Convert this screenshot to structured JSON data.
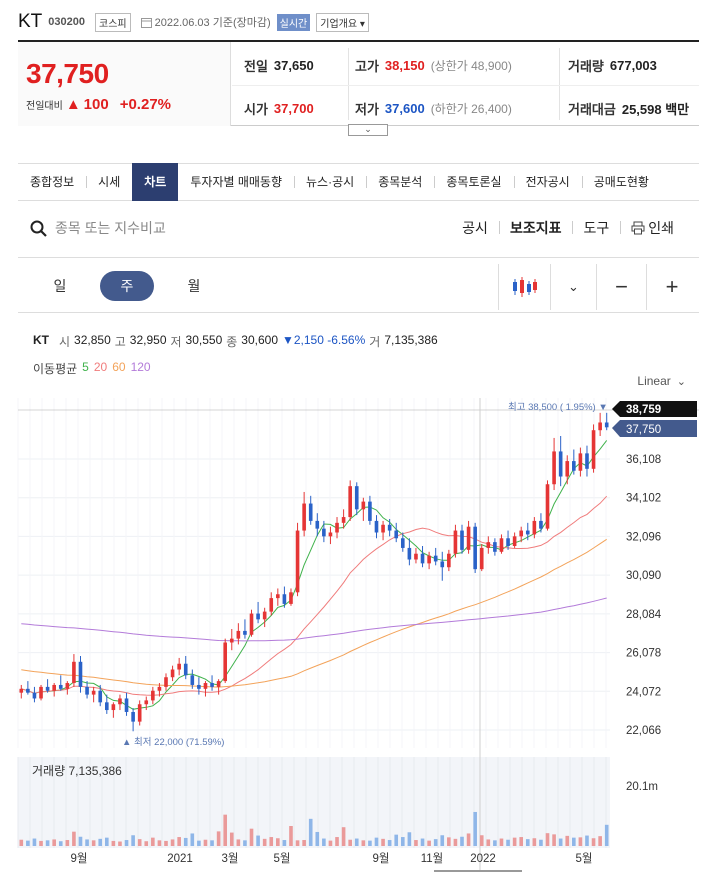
{
  "header": {
    "name": "KT",
    "code": "030200",
    "market": "코스피",
    "date_text": "2022.06.03 기준(장마감)",
    "live": "실시간",
    "company_info": "기업개요"
  },
  "quote": {
    "price": "37,750",
    "change_label": "전일대비",
    "change_amount": "100",
    "change_pct": "+0.27%",
    "prev_label": "전일",
    "prev": "37,650",
    "high_label": "고가",
    "high": "38,150",
    "upper_limit": "(상한가 48,900)",
    "volume_label": "거래량",
    "volume": "677,003",
    "open_label": "시가",
    "open": "37,700",
    "low_label": "저가",
    "low": "37,600",
    "lower_limit": "(하한가 26,400)",
    "value_label": "거래대금",
    "value": "25,598 백만"
  },
  "tabs": [
    "종합정보",
    "시세",
    "차트",
    "투자자별 매매동향",
    "뉴스·공시",
    "종목분석",
    "종목토론실",
    "전자공시",
    "공매도현황"
  ],
  "active_tab": "차트",
  "search": {
    "placeholder": "종목 또는 지수비교"
  },
  "tools": {
    "disclosure": "공시",
    "indicators": "보조지표",
    "draw": "도구",
    "print": "인쇄"
  },
  "period": {
    "day": "일",
    "week": "주",
    "month": "월"
  },
  "legend": {
    "name": "KT",
    "open_label": "시",
    "open": "32,850",
    "high_label": "고",
    "high": "32,950",
    "low_label": "저",
    "low": "30,550",
    "close_label": "종",
    "close": "30,600",
    "change": "▼2,150 -6.56%",
    "volume_label": "거",
    "volume": "7,135,386",
    "ma_label": "이동평균",
    "ma_periods": [
      "5",
      "20",
      "60",
      "120"
    ]
  },
  "scale_label": "Linear",
  "colors": {
    "up": "#e53535",
    "down": "#2a62c8",
    "ma5": "#3fb24b",
    "ma20": "#f07c7c",
    "ma60": "#f3a35a",
    "ma120": "#b37bd9",
    "accent": "#2c3e70",
    "price_red": "#e02020"
  },
  "chart_data": {
    "type": "candlestick",
    "period": "weekly",
    "y_axis_ticks": [
      "36,108",
      "34,102",
      "32,096",
      "30,090",
      "28,084",
      "26,078",
      "24,072",
      "22,066"
    ],
    "y_ticks_num": [
      36108,
      34102,
      32096,
      30090,
      28084,
      26078,
      24072,
      22066
    ],
    "x_axis_ticks": [
      "9월",
      "2021",
      "3월",
      "5월",
      "9월",
      "11월",
      "2022",
      "5월"
    ],
    "price_markers": {
      "high_tag": "38,759",
      "current_tag": "37,750"
    },
    "annotations": {
      "max": "최고 38,500 ( 1.95%)",
      "min": "최저 22,000 (71.59%)"
    },
    "volume_label": "거래량",
    "volume_value": "7,135,386",
    "volume_axis": "20.1m",
    "candles": [
      [
        24000,
        24400,
        23700,
        24200
      ],
      [
        24200,
        24600,
        23900,
        24000
      ],
      [
        24000,
        24300,
        23500,
        23700
      ],
      [
        23700,
        24400,
        23600,
        24300
      ],
      [
        24300,
        24700,
        24000,
        24100
      ],
      [
        24100,
        24500,
        23800,
        24400
      ],
      [
        24400,
        24900,
        24100,
        24200
      ],
      [
        24200,
        24600,
        23900,
        24500
      ],
      [
        24500,
        26000,
        24300,
        25600
      ],
      [
        25600,
        25900,
        24000,
        24300
      ],
      [
        24300,
        24600,
        23700,
        23900
      ],
      [
        23900,
        24300,
        23500,
        24100
      ],
      [
        24100,
        24400,
        23300,
        23500
      ],
      [
        23500,
        23900,
        22900,
        23100
      ],
      [
        23100,
        23500,
        22700,
        23400
      ],
      [
        23400,
        23900,
        23100,
        23700
      ],
      [
        23700,
        24000,
        22800,
        23000
      ],
      [
        23000,
        23200,
        22000,
        22500
      ],
      [
        22500,
        23600,
        22300,
        23400
      ],
      [
        23400,
        23800,
        23100,
        23600
      ],
      [
        23600,
        24300,
        23400,
        24100
      ],
      [
        24100,
        24500,
        23800,
        24300
      ],
      [
        24300,
        25000,
        24100,
        24800
      ],
      [
        24800,
        25400,
        24600,
        25200
      ],
      [
        25200,
        25800,
        24900,
        25500
      ],
      [
        25500,
        25900,
        24700,
        24900
      ],
      [
        24900,
        25200,
        24200,
        24400
      ],
      [
        24400,
        24800,
        23900,
        24200
      ],
      [
        24200,
        24600,
        23800,
        24500
      ],
      [
        24500,
        24900,
        24100,
        24300
      ],
      [
        24300,
        24700,
        23900,
        24600
      ],
      [
        24600,
        26800,
        24500,
        26600
      ],
      [
        26600,
        27300,
        26200,
        26800
      ],
      [
        26800,
        27600,
        26500,
        27200
      ],
      [
        27200,
        27800,
        26800,
        27000
      ],
      [
        27000,
        28300,
        26900,
        28100
      ],
      [
        28100,
        28700,
        27600,
        27800
      ],
      [
        27800,
        28400,
        27400,
        28200
      ],
      [
        28200,
        29200,
        28000,
        28900
      ],
      [
        28900,
        29400,
        28500,
        29100
      ],
      [
        29100,
        29500,
        28400,
        28600
      ],
      [
        28600,
        29400,
        28500,
        29200
      ],
      [
        29200,
        32800,
        29000,
        32400
      ],
      [
        32400,
        34400,
        32100,
        33800
      ],
      [
        33800,
        34200,
        32700,
        32900
      ],
      [
        32900,
        33300,
        32100,
        32500
      ],
      [
        32500,
        32900,
        31800,
        32100
      ],
      [
        32100,
        32600,
        31700,
        32300
      ],
      [
        32300,
        33100,
        32000,
        32800
      ],
      [
        32800,
        33500,
        32500,
        33100
      ],
      [
        33100,
        35000,
        32900,
        34700
      ],
      [
        34700,
        34900,
        33200,
        33500
      ],
      [
        33500,
        34100,
        32900,
        33900
      ],
      [
        33900,
        34200,
        32700,
        32900
      ],
      [
        32900,
        33200,
        32000,
        32300
      ],
      [
        32300,
        32900,
        31900,
        32700
      ],
      [
        32700,
        33000,
        32100,
        32400
      ],
      [
        32400,
        32800,
        31800,
        32000
      ],
      [
        32000,
        32300,
        31300,
        31500
      ],
      [
        31500,
        32000,
        30600,
        30900
      ],
      [
        30900,
        31500,
        30700,
        31200
      ],
      [
        31200,
        31600,
        30500,
        30700
      ],
      [
        30700,
        31300,
        30400,
        31100
      ],
      [
        31100,
        31500,
        30600,
        30800
      ],
      [
        30800,
        31300,
        29800,
        30500
      ],
      [
        30500,
        31400,
        30300,
        31200
      ],
      [
        31200,
        32700,
        31000,
        32400
      ],
      [
        32400,
        32700,
        31200,
        31400
      ],
      [
        31400,
        32900,
        31200,
        32600
      ],
      [
        32600,
        32800,
        30200,
        30400
      ],
      [
        30400,
        31700,
        30300,
        31500
      ],
      [
        31500,
        32100,
        31200,
        31800
      ],
      [
        31800,
        32000,
        31100,
        31300
      ],
      [
        31300,
        32200,
        31200,
        32000
      ],
      [
        32000,
        32400,
        31400,
        31600
      ],
      [
        31600,
        32300,
        31500,
        32100
      ],
      [
        32100,
        32600,
        31800,
        32400
      ],
      [
        32400,
        32800,
        31900,
        32200
      ],
      [
        32200,
        33100,
        32000,
        32900
      ],
      [
        32900,
        33300,
        32300,
        32500
      ],
      [
        32500,
        35000,
        32400,
        34800
      ],
      [
        34800,
        37200,
        34500,
        36500
      ],
      [
        36500,
        37300,
        34700,
        35200
      ],
      [
        35200,
        36300,
        34800,
        36000
      ],
      [
        36000,
        36600,
        35300,
        35500
      ],
      [
        35500,
        36700,
        35200,
        36400
      ],
      [
        36400,
        36800,
        35200,
        35600
      ],
      [
        35600,
        37900,
        35400,
        37600
      ],
      [
        37600,
        38500,
        37300,
        38000
      ],
      [
        38000,
        38500,
        37600,
        37750
      ]
    ],
    "volumes": [
      2.1,
      1.8,
      2.5,
      1.7,
      1.9,
      2.2,
      1.6,
      2.0,
      4.8,
      3.1,
      2.2,
      1.9,
      2.4,
      2.8,
      1.7,
      1.5,
      2.0,
      3.6,
      2.3,
      1.6,
      2.8,
      1.9,
      1.7,
      2.2,
      3.0,
      2.7,
      4.2,
      1.8,
      2.1,
      1.9,
      4.9,
      10.5,
      4.5,
      2.2,
      1.9,
      5.8,
      3.5,
      2.4,
      3.0,
      2.6,
      2.0,
      6.7,
      1.9,
      2.0,
      9.1,
      4.7,
      2.5,
      1.8,
      3.0,
      6.3,
      2.1,
      2.5,
      1.9,
      1.8,
      2.8,
      2.4,
      2.0,
      3.8,
      3.0,
      4.6,
      2.0,
      2.5,
      1.8,
      2.3,
      3.6,
      2.9,
      2.4,
      3.1,
      4.2,
      11.4,
      3.6,
      2.2,
      1.9,
      2.5,
      2.1,
      2.8,
      3.0,
      2.3,
      2.6,
      2.1,
      4.3,
      3.9,
      2.5,
      3.4,
      2.8,
      2.9,
      3.5,
      2.6,
      3.3,
      7.1
    ]
  }
}
